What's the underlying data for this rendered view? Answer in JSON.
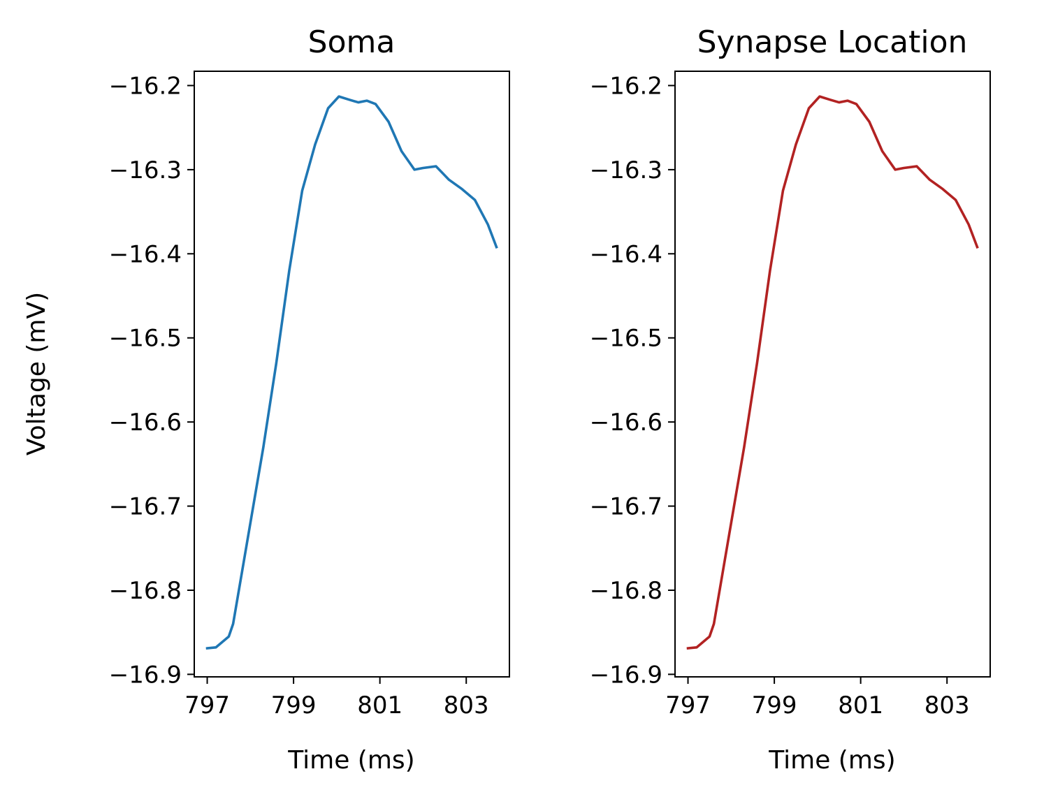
{
  "chart_data": [
    {
      "type": "line",
      "title": "Soma",
      "xlabel": "Time (ms)",
      "ylabel": "Voltage (mV)",
      "xlim": [
        796.7,
        804.0
      ],
      "ylim": [
        -16.903,
        -16.183
      ],
      "xticks": [
        797,
        799,
        801,
        803
      ],
      "xtick_labels": [
        "797",
        "799",
        "801",
        "803"
      ],
      "yticks": [
        -16.9,
        -16.8,
        -16.7,
        -16.6,
        -16.5,
        -16.4,
        -16.3,
        -16.2
      ],
      "ytick_labels": [
        "−16.9",
        "−16.8",
        "−16.7",
        "−16.6",
        "−16.5",
        "−16.4",
        "−16.3",
        "−16.2"
      ],
      "grid": false,
      "color": "#1f77b4",
      "series": [
        {
          "x": [
            797.0,
            797.2,
            797.5,
            797.6,
            797.8,
            798.0,
            798.3,
            798.6,
            798.9,
            799.2,
            799.5,
            799.8,
            800.05,
            800.3,
            800.5,
            800.7,
            800.9,
            801.2,
            801.5,
            801.8,
            802.0,
            802.3,
            802.6,
            802.9,
            803.2,
            803.5,
            803.7
          ],
          "y": [
            -16.869,
            -16.868,
            -16.855,
            -16.84,
            -16.78,
            -16.72,
            -16.63,
            -16.53,
            -16.42,
            -16.325,
            -16.27,
            -16.227,
            -16.213,
            -16.217,
            -16.22,
            -16.218,
            -16.222,
            -16.243,
            -16.278,
            -16.3,
            -16.298,
            -16.296,
            -16.312,
            -16.323,
            -16.336,
            -16.365,
            -16.392
          ]
        }
      ]
    },
    {
      "type": "line",
      "title": "Synapse Location",
      "xlabel": "Time (ms)",
      "ylabel": "",
      "xlim": [
        796.7,
        804.0
      ],
      "ylim": [
        -16.903,
        -16.183
      ],
      "xticks": [
        797,
        799,
        801,
        803
      ],
      "xtick_labels": [
        "797",
        "799",
        "801",
        "803"
      ],
      "yticks": [
        -16.9,
        -16.8,
        -16.7,
        -16.6,
        -16.5,
        -16.4,
        -16.3,
        -16.2
      ],
      "ytick_labels": [
        "−16.9",
        "−16.8",
        "−16.7",
        "−16.6",
        "−16.5",
        "−16.4",
        "−16.3",
        "−16.2"
      ],
      "grid": false,
      "color": "#b22222",
      "series": [
        {
          "x": [
            797.0,
            797.2,
            797.5,
            797.6,
            797.8,
            798.0,
            798.3,
            798.6,
            798.9,
            799.2,
            799.5,
            799.8,
            800.05,
            800.3,
            800.5,
            800.7,
            800.9,
            801.2,
            801.5,
            801.8,
            802.0,
            802.3,
            802.6,
            802.9,
            803.2,
            803.5,
            803.7
          ],
          "y": [
            -16.869,
            -16.868,
            -16.855,
            -16.84,
            -16.78,
            -16.72,
            -16.63,
            -16.53,
            -16.42,
            -16.325,
            -16.27,
            -16.227,
            -16.213,
            -16.217,
            -16.22,
            -16.218,
            -16.222,
            -16.243,
            -16.278,
            -16.3,
            -16.298,
            -16.296,
            -16.312,
            -16.323,
            -16.336,
            -16.365,
            -16.392
          ]
        }
      ]
    }
  ]
}
